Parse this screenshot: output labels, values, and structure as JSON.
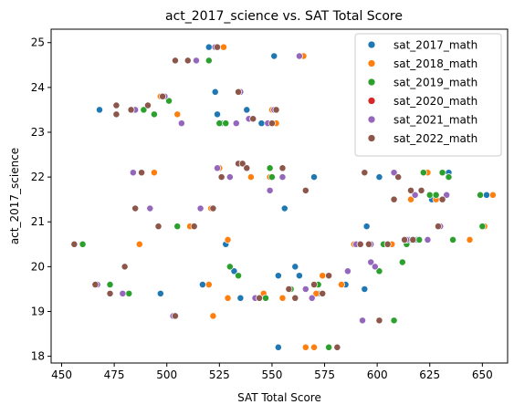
{
  "chart_data": {
    "type": "scatter",
    "title": "act_2017_science vs. SAT Total Score",
    "xlabel": "SAT Total Score",
    "ylabel": "act_2017_science",
    "xlim": [
      445,
      662
    ],
    "ylim": [
      17.85,
      25.3
    ],
    "xticks": [
      450,
      475,
      500,
      525,
      550,
      575,
      600,
      625,
      650
    ],
    "yticks": [
      18,
      19,
      20,
      21,
      22,
      23,
      24,
      25
    ],
    "grid": false,
    "legend_position": "top-right",
    "series": [
      {
        "name": "sat_2017_math",
        "color": "#1f77b4",
        "points": [
          [
            468,
            23.5
          ],
          [
            497,
            19.4
          ],
          [
            503,
            18.9
          ],
          [
            516,
            21.3
          ],
          [
            517,
            19.6
          ],
          [
            520,
            24.9
          ],
          [
            523,
            23.9
          ],
          [
            524,
            23.4
          ],
          [
            526,
            23.2
          ],
          [
            528,
            20.5
          ],
          [
            530,
            20
          ],
          [
            532,
            19.9
          ],
          [
            534,
            22.3
          ],
          [
            535,
            19.3
          ],
          [
            538,
            23.5
          ],
          [
            542,
            19.3
          ],
          [
            545,
            23.2
          ],
          [
            551,
            24.7
          ],
          [
            553,
            19.8
          ],
          [
            553,
            18.2
          ],
          [
            556,
            21.3
          ],
          [
            561,
            20
          ],
          [
            563,
            19.8
          ],
          [
            570,
            22
          ],
          [
            572,
            19.4
          ],
          [
            585,
            19.6
          ],
          [
            594,
            19.5
          ],
          [
            595,
            20.9
          ],
          [
            601,
            22
          ],
          [
            603,
            20.5
          ],
          [
            612,
            20.1
          ],
          [
            615,
            20.6
          ],
          [
            619,
            20.6
          ],
          [
            626,
            21.5
          ],
          [
            634,
            22.1
          ],
          [
            649,
            21.6
          ],
          [
            652,
            21.6
          ]
        ]
      },
      {
        "name": "sat_2018_math",
        "color": "#ff7f0e",
        "points": [
          [
            487,
            20.5
          ],
          [
            494,
            22.1
          ],
          [
            497,
            23.8
          ],
          [
            505,
            23.4
          ],
          [
            511,
            20.9
          ],
          [
            520,
            19.6
          ],
          [
            521,
            21.3
          ],
          [
            522,
            18.9
          ],
          [
            525,
            22.2
          ],
          [
            527,
            24.9
          ],
          [
            528,
            23.2
          ],
          [
            529,
            20.6
          ],
          [
            529,
            19.3
          ],
          [
            540,
            22
          ],
          [
            542,
            19.3
          ],
          [
            546,
            19.4
          ],
          [
            549,
            22
          ],
          [
            550,
            23.5
          ],
          [
            552,
            23.2
          ],
          [
            555,
            19.3
          ],
          [
            565,
            24.7
          ],
          [
            566,
            18.2
          ],
          [
            570,
            18.2
          ],
          [
            571,
            19.4
          ],
          [
            572,
            19.6
          ],
          [
            574,
            19.8
          ],
          [
            583,
            19.6
          ],
          [
            589,
            20.5
          ],
          [
            591,
            20.5
          ],
          [
            601,
            18.8
          ],
          [
            607,
            20.5
          ],
          [
            613,
            20.6
          ],
          [
            616,
            21.5
          ],
          [
            624,
            22.1
          ],
          [
            628,
            21.5
          ],
          [
            644,
            20.6
          ],
          [
            651,
            20.9
          ],
          [
            655,
            21.6
          ]
        ]
      },
      {
        "name": "sat_2019_math",
        "color": "#2ca02c",
        "points": [
          [
            460,
            20.5
          ],
          [
            473,
            19.6
          ],
          [
            482,
            19.4
          ],
          [
            483,
            23.5
          ],
          [
            489,
            23.5
          ],
          [
            494,
            23.4
          ],
          [
            501,
            23.7
          ],
          [
            505,
            20.9
          ],
          [
            520,
            24.6
          ],
          [
            525,
            23.2
          ],
          [
            528,
            23.2
          ],
          [
            530,
            20
          ],
          [
            534,
            19.8
          ],
          [
            536,
            22.3
          ],
          [
            547,
            19.3
          ],
          [
            549,
            22.2
          ],
          [
            550,
            22
          ],
          [
            559,
            19.5
          ],
          [
            572,
            19.6
          ],
          [
            577,
            18.2
          ],
          [
            601,
            19.9
          ],
          [
            603,
            20.5
          ],
          [
            608,
            18.8
          ],
          [
            612,
            20.1
          ],
          [
            614,
            20.5
          ],
          [
            620,
            20.6
          ],
          [
            622,
            22.1
          ],
          [
            625,
            21.6
          ],
          [
            628,
            21.6
          ],
          [
            631,
            22.1
          ],
          [
            634,
            22
          ],
          [
            636,
            20.6
          ],
          [
            649,
            21.6
          ],
          [
            650,
            20.9
          ]
        ]
      },
      {
        "name": "sat_2020_math",
        "color": "#d62728",
        "points": []
      },
      {
        "name": "sat_2021_math",
        "color": "#9467bd",
        "points": [
          [
            467,
            19.6
          ],
          [
            479,
            19.4
          ],
          [
            484,
            22.1
          ],
          [
            485,
            23.5
          ],
          [
            492,
            21.3
          ],
          [
            496,
            20.9
          ],
          [
            499,
            23.8
          ],
          [
            503,
            18.9
          ],
          [
            507,
            23.2
          ],
          [
            514,
            24.6
          ],
          [
            516,
            21.3
          ],
          [
            523,
            24.9
          ],
          [
            524,
            22.2
          ],
          [
            530,
            22
          ],
          [
            533,
            23.2
          ],
          [
            535,
            23.9
          ],
          [
            539,
            23.3
          ],
          [
            542,
            19.3
          ],
          [
            548,
            23.2
          ],
          [
            549,
            21.7
          ],
          [
            551,
            23.5
          ],
          [
            555,
            22
          ],
          [
            563,
            24.7
          ],
          [
            566,
            19.5
          ],
          [
            569,
            19.3
          ],
          [
            586,
            19.9
          ],
          [
            590,
            20.5
          ],
          [
            593,
            18.8
          ],
          [
            597,
            20.1
          ],
          [
            597,
            20.5
          ],
          [
            599,
            20
          ],
          [
            608,
            22.1
          ],
          [
            614,
            20.6
          ],
          [
            618,
            21.6
          ],
          [
            624,
            20.6
          ],
          [
            630,
            20.9
          ],
          [
            633,
            21.6
          ]
        ]
      },
      {
        "name": "sat_2022_math",
        "color": "#8c564b",
        "points": [
          [
            456,
            20.5
          ],
          [
            466,
            19.6
          ],
          [
            473,
            19.4
          ],
          [
            476,
            23.4
          ],
          [
            476,
            23.6
          ],
          [
            480,
            20
          ],
          [
            483,
            23.5
          ],
          [
            485,
            21.3
          ],
          [
            488,
            22.1
          ],
          [
            491,
            23.6
          ],
          [
            496,
            20.9
          ],
          [
            498,
            23.8
          ],
          [
            504,
            18.9
          ],
          [
            504,
            24.6
          ],
          [
            510,
            24.6
          ],
          [
            513,
            20.9
          ],
          [
            522,
            21.3
          ],
          [
            524,
            24.9
          ],
          [
            526,
            22
          ],
          [
            534,
            22.3
          ],
          [
            534,
            23.9
          ],
          [
            536,
            22.3
          ],
          [
            538,
            22.2
          ],
          [
            541,
            23.3
          ],
          [
            544,
            19.3
          ],
          [
            550,
            23.2
          ],
          [
            552,
            23.5
          ],
          [
            555,
            22.2
          ],
          [
            558,
            19.5
          ],
          [
            561,
            19.3
          ],
          [
            566,
            21.7
          ],
          [
            570,
            19.6
          ],
          [
            574,
            19.4
          ],
          [
            577,
            19.8
          ],
          [
            581,
            18.2
          ],
          [
            592,
            20.5
          ],
          [
            594,
            22.1
          ],
          [
            596,
            20.5
          ],
          [
            601,
            18.8
          ],
          [
            605,
            20.5
          ],
          [
            608,
            21.5
          ],
          [
            610,
            22
          ],
          [
            613,
            20.6
          ],
          [
            616,
            21.7
          ],
          [
            617,
            20.6
          ],
          [
            621,
            21.7
          ],
          [
            629,
            20.9
          ],
          [
            631,
            21.5
          ]
        ]
      }
    ]
  }
}
